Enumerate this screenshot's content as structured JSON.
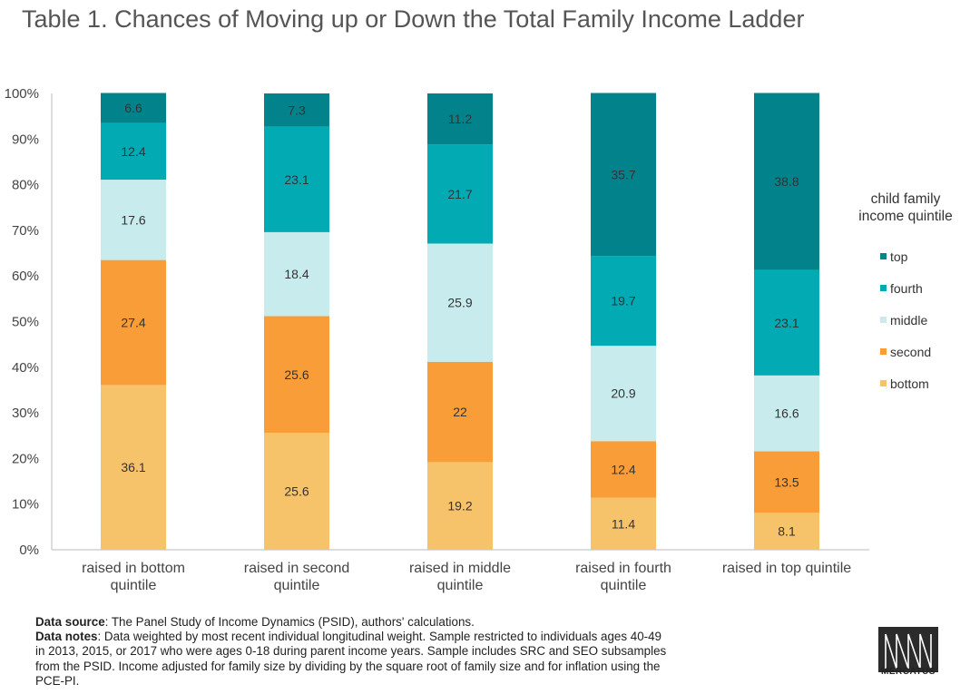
{
  "title": "Table 1. Chances of Moving up or Down the Total Family Income Ladder",
  "chart_data": {
    "type": "bar",
    "stacked": true,
    "ylim": [
      0,
      100
    ],
    "y_ticks": [
      "0%",
      "10%",
      "20%",
      "30%",
      "40%",
      "50%",
      "60%",
      "70%",
      "80%",
      "90%",
      "100%"
    ],
    "categories": [
      [
        "raised in bottom",
        "quintile"
      ],
      [
        "raised in second",
        "quintile"
      ],
      [
        "raised in middle",
        "quintile"
      ],
      [
        "raised in fourth",
        "quintile"
      ],
      [
        "raised in top quintile"
      ]
    ],
    "legend_title": [
      "child family",
      "income quintile"
    ],
    "legend_placement": "right",
    "series": [
      {
        "name": "bottom",
        "color": "#f6c36b",
        "values": [
          36.1,
          25.6,
          19.2,
          11.4,
          8.1
        ],
        "labels": [
          "36.1",
          "25.6",
          "19.2",
          "11.4",
          "8.1"
        ]
      },
      {
        "name": "second",
        "color": "#f99d38",
        "values": [
          27.4,
          25.6,
          22,
          12.4,
          13.5
        ],
        "labels": [
          "27.4",
          "25.6",
          "22",
          "12.4",
          "13.5"
        ]
      },
      {
        "name": "middle",
        "color": "#c8eced",
        "values": [
          17.6,
          18.4,
          25.9,
          20.9,
          16.6
        ],
        "labels": [
          "17.6",
          "18.4",
          "25.9",
          "20.9",
          "16.6"
        ]
      },
      {
        "name": "fourth",
        "color": "#02aab3",
        "values": [
          12.4,
          23.1,
          21.7,
          19.7,
          23.1
        ],
        "labels": [
          "12.4",
          "23.1",
          "21.7",
          "19.7",
          "23.1"
        ]
      },
      {
        "name": "top",
        "color": "#02838b",
        "values": [
          6.6,
          7.3,
          11.2,
          35.7,
          38.8
        ],
        "labels": [
          "6.6",
          "7.3",
          "11.2",
          "35.7",
          "38.8"
        ]
      }
    ]
  },
  "notes": {
    "source_label": "Data source",
    "source_text": ": The Panel Study of Income Dynamics (PSID), authors' calculations.",
    "notes_label": "Data notes",
    "notes_text": ": Data weighted by most recent individual longitudinal weight. Sample restricted to individuals ages 40-49 in 2013, 2015, or 2017 who were ages 0-18 during parent income years. Sample includes SRC and SEO subsamples from the PSID. Income adjusted for family size by dividing by the square root of family size and for inflation using the PCE-PI."
  },
  "logo": {
    "text": "MERCATUS"
  }
}
